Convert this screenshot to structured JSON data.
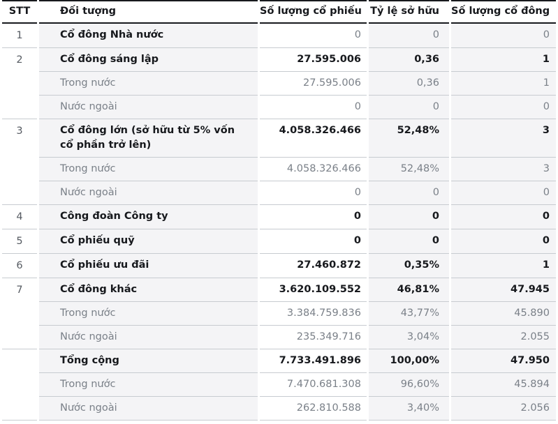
{
  "colors": {
    "header_border": "#17191d",
    "row_border": "#c7cbd0",
    "stripe_bg": "#f4f4f6",
    "text_primary": "#17191d",
    "text_muted": "#7a8088",
    "stt_text": "#565b62"
  },
  "table": {
    "name": "shareholder-structure",
    "columns": [
      {
        "key": "stt",
        "label": "STT"
      },
      {
        "key": "doi_tuong",
        "label": "Đối tượng"
      },
      {
        "key": "so_luong_co_phieu",
        "label": "Số lượng cổ phiếu"
      },
      {
        "key": "ty_le_so_huu",
        "label": "Tỷ lệ sở hữu"
      },
      {
        "key": "so_luong_co_dong",
        "label": "Số lượng cổ đông"
      }
    ],
    "groups": [
      {
        "stt": "1",
        "rows": [
          {
            "label": "Cổ đông Nhà nước",
            "label_bold": true,
            "values": [
              "0",
              "0",
              "0"
            ],
            "values_bold": false
          }
        ]
      },
      {
        "stt": "2",
        "rows": [
          {
            "label": "Cổ đông sáng lập",
            "label_bold": true,
            "values": [
              "27.595.006",
              "0,36",
              "1"
            ],
            "values_bold": true
          },
          {
            "label": "Trong nước",
            "label_bold": false,
            "values": [
              "27.595.006",
              "0,36",
              "1"
            ],
            "values_bold": false
          },
          {
            "label": "Nước ngoài",
            "label_bold": false,
            "values": [
              "0",
              "0",
              "0"
            ],
            "values_bold": false
          }
        ]
      },
      {
        "stt": "3",
        "rows": [
          {
            "label": "Cổ đông lớn (sở hữu từ 5% vốn cổ phần trở lên)",
            "label_bold": true,
            "values": [
              "4.058.326.466",
              "52,48%",
              "3"
            ],
            "values_bold": true
          },
          {
            "label": "Trong nước",
            "label_bold": false,
            "values": [
              "4.058.326.466",
              "52,48%",
              "3"
            ],
            "values_bold": false
          },
          {
            "label": "Nước ngoài",
            "label_bold": false,
            "values": [
              "0",
              "0",
              "0"
            ],
            "values_bold": false
          }
        ]
      },
      {
        "stt": "4",
        "rows": [
          {
            "label": "Công đoàn Công ty",
            "label_bold": true,
            "values": [
              "0",
              "0",
              "0"
            ],
            "values_bold": true
          }
        ]
      },
      {
        "stt": "5",
        "rows": [
          {
            "label": "Cổ phiếu quỹ",
            "label_bold": true,
            "values": [
              "0",
              "0",
              "0"
            ],
            "values_bold": true
          }
        ]
      },
      {
        "stt": "6",
        "rows": [
          {
            "label": "Cổ phiếu ưu đãi",
            "label_bold": true,
            "values": [
              "27.460.872",
              "0,35%",
              "1"
            ],
            "values_bold": true
          }
        ]
      },
      {
        "stt": "7",
        "rows": [
          {
            "label": "Cổ đông khác",
            "label_bold": true,
            "values": [
              "3.620.109.552",
              "46,81%",
              "47.945"
            ],
            "values_bold": true
          },
          {
            "label": "Trong nước",
            "label_bold": false,
            "values": [
              "3.384.759.836",
              "43,77%",
              "45.890"
            ],
            "values_bold": false
          },
          {
            "label": "Nước ngoài",
            "label_bold": false,
            "values": [
              "235.349.716",
              "3,04%",
              "2.055"
            ],
            "values_bold": false
          }
        ]
      },
      {
        "stt": "",
        "rows": [
          {
            "label": "Tổng cộng",
            "label_bold": true,
            "values": [
              "7.733.491.896",
              "100,00%",
              "47.950"
            ],
            "values_bold": true
          },
          {
            "label": "Trong nước",
            "label_bold": false,
            "values": [
              "7.470.681.308",
              "96,60%",
              "45.894"
            ],
            "values_bold": false
          },
          {
            "label": "Nước ngoài",
            "label_bold": false,
            "values": [
              "262.810.588",
              "3,40%",
              "2.056"
            ],
            "values_bold": false
          }
        ]
      }
    ]
  }
}
